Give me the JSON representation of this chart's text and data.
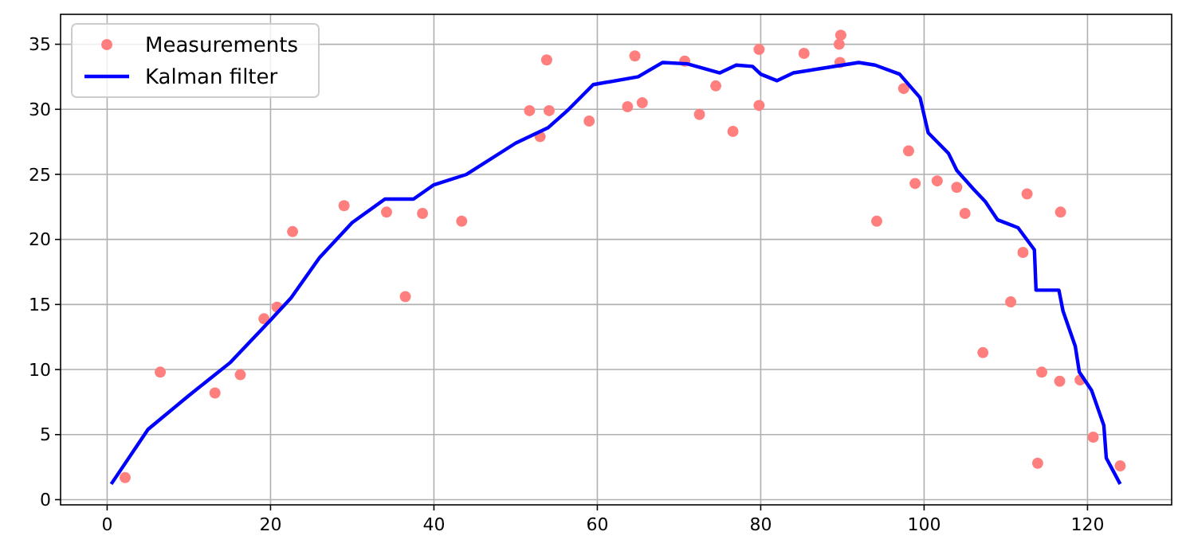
{
  "chart_data": {
    "type": "scatter",
    "xlim": [
      -5.7,
      130.3
    ],
    "ylim": [
      -0.4,
      37.3
    ],
    "xticks": [
      0,
      20,
      40,
      60,
      80,
      100,
      120
    ],
    "yticks": [
      0,
      5,
      10,
      15,
      20,
      25,
      30,
      35
    ],
    "grid": true,
    "legend": "top left",
    "marker": "circle",
    "series": [
      {
        "name": "Measurements",
        "color": "#ff7f7f",
        "x": [
          2.2,
          6.5,
          13.2,
          16.3,
          19.2,
          20.8,
          22.7,
          29,
          34.2,
          36.5,
          38.6,
          43.4,
          51.7,
          53,
          53.8,
          54.1,
          59,
          63.7,
          64.6,
          65.5,
          70.7,
          72.5,
          74.5,
          76.6,
          79.8,
          79.8,
          85.3,
          89.6,
          89.8,
          89.7,
          94.2,
          97.5,
          98.1,
          98.9,
          101.6,
          104,
          105,
          107.2,
          110.6,
          112.1,
          112.6,
          113.9,
          114.4,
          116.6,
          116.7,
          119.1,
          120.7,
          124
        ],
        "values": [
          1.7,
          9.8,
          8.2,
          9.6,
          13.9,
          14.8,
          20.6,
          22.6,
          22.1,
          15.6,
          22,
          21.4,
          29.9,
          27.9,
          33.8,
          29.9,
          29.1,
          30.2,
          34.1,
          30.5,
          33.7,
          29.6,
          31.8,
          28.3,
          34.6,
          30.3,
          34.3,
          35,
          35.7,
          33.6,
          21.4,
          31.6,
          26.8,
          24.3,
          24.5,
          24,
          22,
          11.3,
          15.2,
          19,
          23.5,
          2.8,
          9.8,
          9.1,
          22.1,
          9.2,
          4.8,
          2.6
        ]
      },
      {
        "name": "Kalman filter",
        "type": "line",
        "color": "#0000ff",
        "marker": "none",
        "line_style": "solid",
        "x": [
          0.5,
          5,
          10,
          15,
          20,
          22.5,
          26,
          30,
          34,
          37.5,
          40,
          44,
          50,
          54,
          56.5,
          59.5,
          65,
          68,
          71,
          75,
          77,
          79,
          80,
          82,
          84,
          88,
          92,
          94,
          97,
          99.5,
          100.5,
          103,
          104,
          106,
          107.5,
          109,
          111.5,
          113.5,
          113.7,
          116.5,
          117,
          118.5,
          119,
          120.5,
          122,
          122.3,
          124
        ],
        "values": [
          1.2,
          5.4,
          8,
          10.5,
          13.8,
          15.5,
          18.6,
          21.3,
          23.1,
          23.1,
          24.2,
          25,
          27.4,
          28.6,
          30,
          31.9,
          32.5,
          33.6,
          33.5,
          32.8,
          33.4,
          33.3,
          32.7,
          32.2,
          32.8,
          33.2,
          33.6,
          33.4,
          32.7,
          30.9,
          28.2,
          26.6,
          25.3,
          23.9,
          22.9,
          21.5,
          20.9,
          19.2,
          16.1,
          16.1,
          14.5,
          11.8,
          9.8,
          8.4,
          5.7,
          3.2,
          1.2
        ]
      }
    ]
  }
}
